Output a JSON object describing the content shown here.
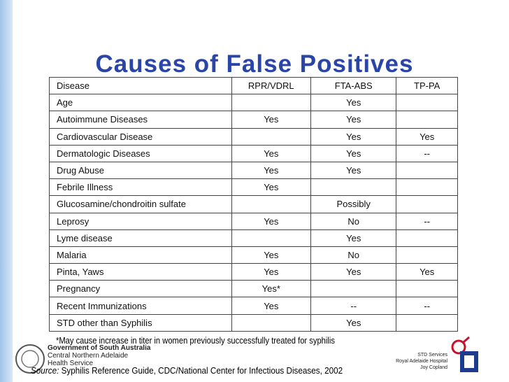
{
  "title": "Causes of False Positives",
  "table": {
    "header": [
      "Disease",
      "RPR/VDRL",
      "FTA-ABS",
      "TP-PA"
    ],
    "rows": [
      [
        "Age",
        null,
        "Yes",
        null
      ],
      [
        "Autoimmune Diseases",
        "Yes",
        "Yes",
        null
      ],
      [
        "Cardiovascular Disease",
        null,
        "Yes",
        "Yes"
      ],
      [
        "Dermatologic Diseases",
        "Yes",
        "Yes",
        "--"
      ],
      [
        "Drug Abuse",
        "Yes",
        "Yes",
        null
      ],
      [
        "Febrile Illness",
        "Yes",
        null,
        null
      ],
      [
        "Glucosamine/chondroitin sulfate",
        null,
        "Possibly",
        null
      ],
      [
        "Leprosy",
        "Yes",
        "No",
        "--"
      ],
      [
        "Lyme disease",
        null,
        "Yes",
        null
      ],
      [
        "Malaria",
        "Yes",
        "No",
        null
      ],
      [
        "Pinta, Yaws",
        "Yes",
        "Yes",
        "Yes"
      ],
      [
        "Pregnancy",
        "Yes*",
        null,
        null
      ],
      [
        "Recent Immunizations",
        "Yes",
        "--",
        "--"
      ],
      [
        "STD other than Syphilis",
        null,
        "Yes",
        null
      ]
    ]
  },
  "footnote": "*May cause increase in titer in women previously successfully treated for syphilis",
  "source": {
    "label": "Source:",
    "text": "Syphilis Reference Guide, CDC/National Center for Infectious Diseases, 2002"
  },
  "logo_left": {
    "line1": "Government of South Australia",
    "line2": "Central Northern Adelaide",
    "line3": "Health Service"
  },
  "logo_right": {
    "line1": "STD Services",
    "line2": "Royal Adelaide Hospital",
    "line3": "Joy Copland"
  }
}
